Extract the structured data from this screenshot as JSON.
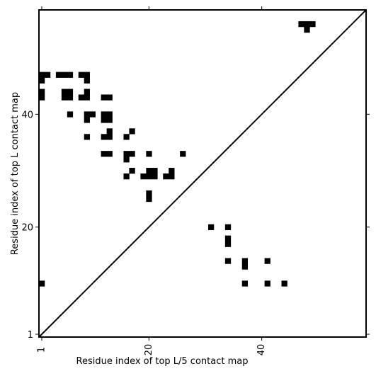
{
  "chart_data": {
    "type": "heatmap",
    "title": "",
    "xlabel": "Residue index of top L/5 contact map",
    "ylabel": "Residue index of top L contact map",
    "xlim": [
      0.5,
      58.5
    ],
    "ylim": [
      0.5,
      58.5
    ],
    "x_ticks": [
      {
        "value": 1,
        "label": "1"
      },
      {
        "value": 20,
        "label": "20"
      },
      {
        "value": 40,
        "label": "40"
      }
    ],
    "y_ticks": [
      {
        "value": 1,
        "label": "1"
      },
      {
        "value": 20,
        "label": "20"
      },
      {
        "value": 40,
        "label": "40"
      }
    ],
    "diagonal": true,
    "grid": false,
    "cell_color": "#000000",
    "background_color": "#ffffff",
    "series": [
      {
        "region": "upper-left (top L contact map)",
        "points": [
          [
            47,
            56
          ],
          [
            48,
            56
          ],
          [
            49,
            56
          ],
          [
            48,
            55
          ],
          [
            1,
            47
          ],
          [
            2,
            47
          ],
          [
            4,
            47
          ],
          [
            5,
            47
          ],
          [
            6,
            47
          ],
          [
            8,
            47
          ],
          [
            9,
            47
          ],
          [
            1,
            46
          ],
          [
            9,
            46
          ],
          [
            1,
            44
          ],
          [
            5,
            44
          ],
          [
            6,
            44
          ],
          [
            9,
            44
          ],
          [
            1,
            43
          ],
          [
            5,
            43
          ],
          [
            6,
            43
          ],
          [
            8,
            43
          ],
          [
            9,
            43
          ],
          [
            12,
            43
          ],
          [
            13,
            43
          ],
          [
            6,
            40
          ],
          [
            9,
            40
          ],
          [
            10,
            40
          ],
          [
            12,
            40
          ],
          [
            13,
            40
          ],
          [
            9,
            39
          ],
          [
            12,
            39
          ],
          [
            13,
            39
          ],
          [
            13,
            37
          ],
          [
            9,
            36
          ],
          [
            12,
            36
          ],
          [
            13,
            36
          ],
          [
            16,
            36
          ],
          [
            17,
            37
          ],
          [
            12,
            33
          ],
          [
            13,
            33
          ],
          [
            16,
            33
          ],
          [
            17,
            33
          ],
          [
            20,
            33
          ],
          [
            26,
            33
          ],
          [
            16,
            32
          ],
          [
            17,
            30
          ],
          [
            20,
            30
          ],
          [
            21,
            30
          ],
          [
            24,
            30
          ],
          [
            16,
            29
          ],
          [
            19,
            29
          ],
          [
            20,
            29
          ],
          [
            21,
            29
          ],
          [
            23,
            29
          ],
          [
            24,
            29
          ],
          [
            20,
            26
          ],
          [
            20,
            25
          ]
        ]
      },
      {
        "region": "lower-right (top L/5 contact map)",
        "points": [
          [
            31,
            20
          ],
          [
            34,
            20
          ],
          [
            34,
            18
          ],
          [
            34,
            17
          ],
          [
            34,
            14
          ],
          [
            37,
            14
          ],
          [
            41,
            14
          ],
          [
            37,
            13
          ],
          [
            1,
            10
          ],
          [
            37,
            10
          ],
          [
            41,
            10
          ],
          [
            44,
            10
          ]
        ]
      }
    ]
  }
}
